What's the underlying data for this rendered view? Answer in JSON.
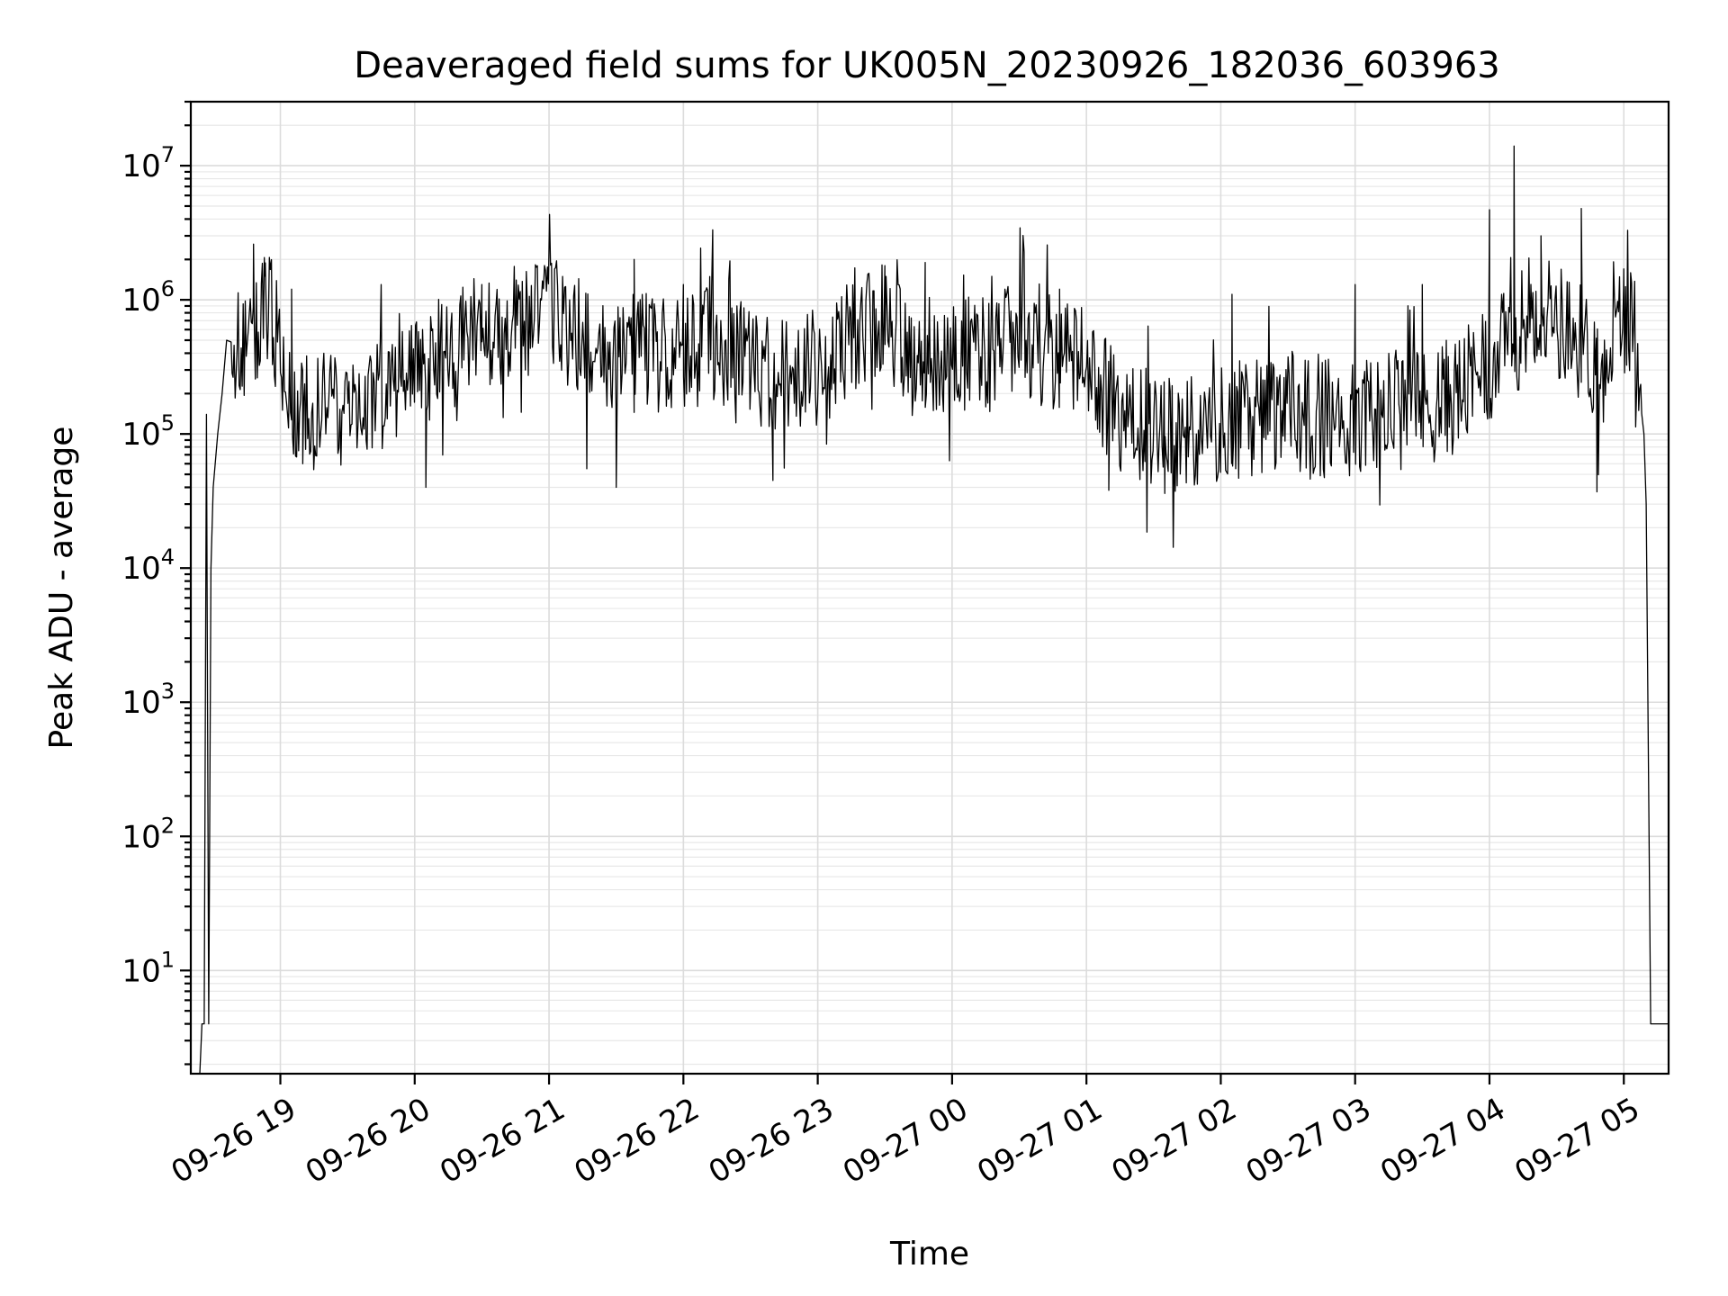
{
  "chart_data": {
    "type": "line",
    "title": "Deaveraged field sums for UK005N_20230926_182036_603963",
    "xlabel": "Time",
    "ylabel": "Peak ADU - average",
    "yscale": "log",
    "ylim": [
      1.7,
      30000000
    ],
    "xlim": [
      "2023-09-26 18:20",
      "2023-09-27 05:20"
    ],
    "grid": true,
    "x_tick_labels": [
      "09-26 19",
      "09-26 20",
      "09-26 21",
      "09-26 22",
      "09-26 23",
      "09-27 00",
      "09-27 01",
      "09-27 02",
      "09-27 03",
      "09-27 04",
      "09-27 05"
    ],
    "x_tick_times": [
      "2023-09-26 19:00",
      "2023-09-26 20:00",
      "2023-09-26 21:00",
      "2023-09-26 22:00",
      "2023-09-26 23:00",
      "2023-09-27 00:00",
      "2023-09-27 01:00",
      "2023-09-27 02:00",
      "2023-09-27 03:00",
      "2023-09-27 04:00",
      "2023-09-27 05:00"
    ],
    "y_tick_values": [
      10,
      100,
      1000,
      10000,
      100000,
      1000000,
      10000000
    ],
    "y_tick_labels": [
      {
        "base": "10",
        "exp": "1"
      },
      {
        "base": "10",
        "exp": "2"
      },
      {
        "base": "10",
        "exp": "3"
      },
      {
        "base": "10",
        "exp": "4"
      },
      {
        "base": "10",
        "exp": "5"
      },
      {
        "base": "10",
        "exp": "6"
      },
      {
        "base": "10",
        "exp": "7"
      }
    ],
    "series": [
      {
        "x": [
          "2023-09-26 18:24",
          "2023-09-26 18:25",
          "2023-09-26 18:26",
          "2023-09-26 18:27",
          "2023-09-26 18:28",
          "2023-09-26 18:29",
          "2023-09-26 18:30",
          "2023-09-26 18:32",
          "2023-09-26 18:34",
          "2023-09-26 18:36",
          "2023-09-26 18:38",
          "2023-09-26 18:40",
          "2023-09-26 18:43",
          "2023-09-26 18:46",
          "2023-09-26 18:50",
          "2023-09-26 18:54",
          "2023-09-26 18:58",
          "2023-09-26 19:05",
          "2023-09-26 19:15",
          "2023-09-26 19:30",
          "2023-09-26 19:45",
          "2023-09-26 20:00",
          "2023-09-26 20:15",
          "2023-09-26 20:30",
          "2023-09-26 20:45",
          "2023-09-26 21:00",
          "2023-09-26 21:15",
          "2023-09-26 21:30",
          "2023-09-26 21:45",
          "2023-09-26 22:00",
          "2023-09-26 22:15",
          "2023-09-26 22:30",
          "2023-09-26 22:45",
          "2023-09-26 23:00",
          "2023-09-26 23:15",
          "2023-09-26 23:30",
          "2023-09-26 23:45",
          "2023-09-27 00:00",
          "2023-09-27 00:15",
          "2023-09-27 00:30",
          "2023-09-27 00:45",
          "2023-09-27 01:00",
          "2023-09-27 01:15",
          "2023-09-27 01:30",
          "2023-09-27 01:45",
          "2023-09-27 02:00",
          "2023-09-27 02:15",
          "2023-09-27 02:30",
          "2023-09-27 02:45",
          "2023-09-27 03:00",
          "2023-09-27 03:15",
          "2023-09-27 03:30",
          "2023-09-27 03:45",
          "2023-09-27 04:00",
          "2023-09-27 04:10",
          "2023-09-27 04:20",
          "2023-09-27 04:30",
          "2023-09-27 04:40",
          "2023-09-27 04:50",
          "2023-09-27 05:00",
          "2023-09-27 05:05",
          "2023-09-27 05:08",
          "2023-09-27 05:09",
          "2023-09-27 05:10",
          "2023-09-27 05:12",
          "2023-09-27 05:14",
          "2023-09-27 05:16",
          "2023-09-27 05:18",
          "2023-09-27 05:20"
        ],
        "y": [
          1.7,
          4,
          4,
          140000,
          4,
          10000,
          40000,
          100000,
          200000,
          500000,
          600000,
          700000,
          500000,
          400000,
          600000,
          1000000,
          600000,
          200000,
          150000,
          150000,
          200000,
          300000,
          400000,
          600000,
          700000,
          800000,
          500000,
          400000,
          400000,
          400000,
          500000,
          300000,
          300000,
          300000,
          500000,
          700000,
          400000,
          400000,
          400000,
          500000,
          400000,
          300000,
          150000,
          100000,
          100000,
          120000,
          130000,
          150000,
          130000,
          130000,
          150000,
          150000,
          200000,
          300000,
          500000,
          900000,
          700000,
          500000,
          300000,
          800000,
          600000,
          300000,
          100000,
          30000,
          4,
          4,
          4,
          4,
          4
        ],
        "spikes": [
          {
            "x": "2023-09-26 18:48",
            "y": 2600000
          },
          {
            "x": "2023-09-26 18:53",
            "y": 1500000
          },
          {
            "x": "2023-09-26 19:05",
            "y": 1200000
          },
          {
            "x": "2023-09-26 19:45",
            "y": 1300000
          },
          {
            "x": "2023-09-26 20:30",
            "y": 1300000
          },
          {
            "x": "2023-09-26 21:38",
            "y": 2000000
          },
          {
            "x": "2023-09-26 22:00",
            "y": 1300000
          },
          {
            "x": "2023-09-26 23:30",
            "y": 1800000
          },
          {
            "x": "2023-09-26 23:48",
            "y": 1900000
          },
          {
            "x": "2023-09-27 00:48",
            "y": 1200000
          },
          {
            "x": "2023-09-27 02:05",
            "y": 1100000
          },
          {
            "x": "2023-09-27 03:00",
            "y": 1300000
          },
          {
            "x": "2023-09-27 03:30",
            "y": 1300000
          },
          {
            "x": "2023-09-27 04:00",
            "y": 4700000
          },
          {
            "x": "2023-09-27 04:11",
            "y": 14000000
          },
          {
            "x": "2023-09-27 04:23",
            "y": 3000000
          },
          {
            "x": "2023-09-27 04:41",
            "y": 4800000
          },
          {
            "x": "2023-09-27 05:00",
            "y": 1700000
          },
          {
            "x": "2023-09-26 19:10",
            "y": 60000
          },
          {
            "x": "2023-09-26 20:05",
            "y": 40000
          },
          {
            "x": "2023-09-26 21:30",
            "y": 40000
          },
          {
            "x": "2023-09-26 22:40",
            "y": 45000
          },
          {
            "x": "2023-09-27 01:10",
            "y": 38000
          },
          {
            "x": "2023-09-27 01:35",
            "y": 36000
          },
          {
            "x": "2023-09-27 04:48",
            "y": 37000
          }
        ]
      }
    ]
  }
}
